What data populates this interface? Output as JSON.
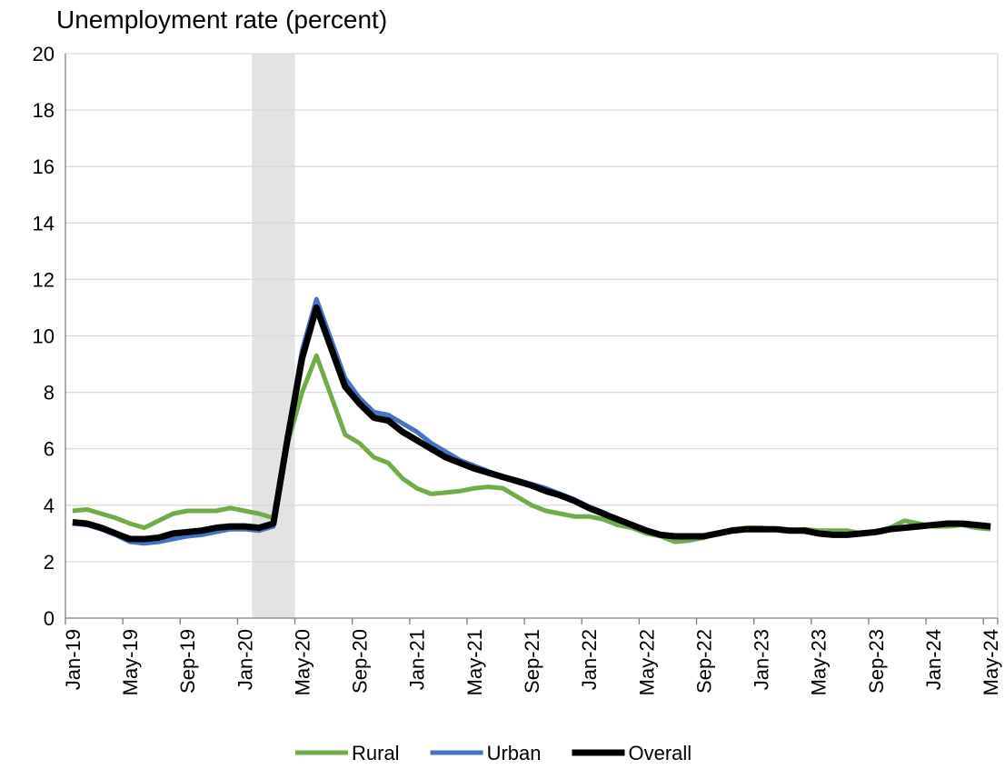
{
  "chart_data": {
    "type": "line",
    "title": "Unemployment rate (percent)",
    "categories": [
      "Jan-19",
      null,
      null,
      null,
      "May-19",
      null,
      null,
      null,
      "Sep-19",
      null,
      null,
      null,
      "Jan-20",
      null,
      null,
      null,
      "May-20",
      null,
      null,
      null,
      "Sep-20",
      null,
      null,
      null,
      "Jan-21",
      null,
      null,
      null,
      "May-21",
      null,
      null,
      null,
      "Sep-21",
      null,
      null,
      null,
      "Jan-22",
      null,
      null,
      null,
      "May-22",
      null,
      null,
      null,
      "Sep-22",
      null,
      null,
      null,
      "Jan-23",
      null,
      null,
      null,
      "May-23",
      null,
      null,
      null,
      "Sep-23",
      null,
      null,
      null,
      "Jan-24",
      null,
      null,
      null,
      "May-24"
    ],
    "series": [
      {
        "name": "Rural",
        "color": "#70ad47",
        "values": [
          3.8,
          3.85,
          3.7,
          3.55,
          3.35,
          3.2,
          3.45,
          3.7,
          3.8,
          3.8,
          3.8,
          3.9,
          3.8,
          3.7,
          3.55,
          6.2,
          8.0,
          9.3,
          7.9,
          6.5,
          6.2,
          5.7,
          5.5,
          4.95,
          4.6,
          4.4,
          4.45,
          4.5,
          4.6,
          4.65,
          4.6,
          4.3,
          4.0,
          3.8,
          3.7,
          3.6,
          3.6,
          3.5,
          3.3,
          3.2,
          3.0,
          2.9,
          2.7,
          2.75,
          2.85,
          3.0,
          3.15,
          3.2,
          3.2,
          3.15,
          3.1,
          3.15,
          3.1,
          3.1,
          3.1,
          3.0,
          3.05,
          3.2,
          3.45,
          3.35,
          3.25,
          3.25,
          3.3,
          3.2,
          3.15
        ]
      },
      {
        "name": "Urban",
        "color": "#4472c4",
        "values": [
          3.35,
          3.3,
          3.15,
          2.95,
          2.7,
          2.65,
          2.7,
          2.8,
          2.9,
          2.95,
          3.05,
          3.15,
          3.15,
          3.1,
          3.25,
          6.5,
          9.5,
          11.3,
          9.9,
          8.5,
          7.8,
          7.3,
          7.2,
          6.9,
          6.6,
          6.2,
          5.9,
          5.6,
          5.4,
          5.2,
          5.0,
          4.9,
          4.75,
          4.6,
          4.4,
          4.2,
          3.95,
          3.75,
          3.5,
          3.3,
          3.1,
          2.95,
          2.9,
          2.9,
          2.9,
          3.0,
          3.1,
          3.15,
          3.15,
          3.15,
          3.1,
          3.1,
          3.0,
          2.95,
          2.95,
          3.0,
          3.05,
          3.15,
          3.2,
          3.25,
          3.3,
          3.35,
          3.35,
          3.3,
          3.25
        ]
      },
      {
        "name": "Overall",
        "color": "#000000",
        "values": [
          3.4,
          3.35,
          3.2,
          3.0,
          2.8,
          2.8,
          2.85,
          3.0,
          3.05,
          3.1,
          3.2,
          3.25,
          3.25,
          3.2,
          3.35,
          6.4,
          9.2,
          11.0,
          9.6,
          8.2,
          7.6,
          7.1,
          7.0,
          6.6,
          6.3,
          6.0,
          5.7,
          5.5,
          5.3,
          5.15,
          5.0,
          4.85,
          4.7,
          4.5,
          4.35,
          4.15,
          3.9,
          3.7,
          3.5,
          3.3,
          3.1,
          2.95,
          2.9,
          2.9,
          2.9,
          3.0,
          3.1,
          3.15,
          3.15,
          3.15,
          3.1,
          3.1,
          3.0,
          2.95,
          2.95,
          3.0,
          3.05,
          3.15,
          3.2,
          3.25,
          3.3,
          3.35,
          3.35,
          3.3,
          3.25
        ]
      }
    ],
    "ylim": [
      0,
      20
    ],
    "yticks": [
      0,
      2,
      4,
      6,
      8,
      10,
      12,
      14,
      16,
      18,
      20
    ],
    "grid": true,
    "shaded_categories": [
      13,
      15
    ],
    "shade_color": "#e3e3e3",
    "legend": "bottom"
  }
}
